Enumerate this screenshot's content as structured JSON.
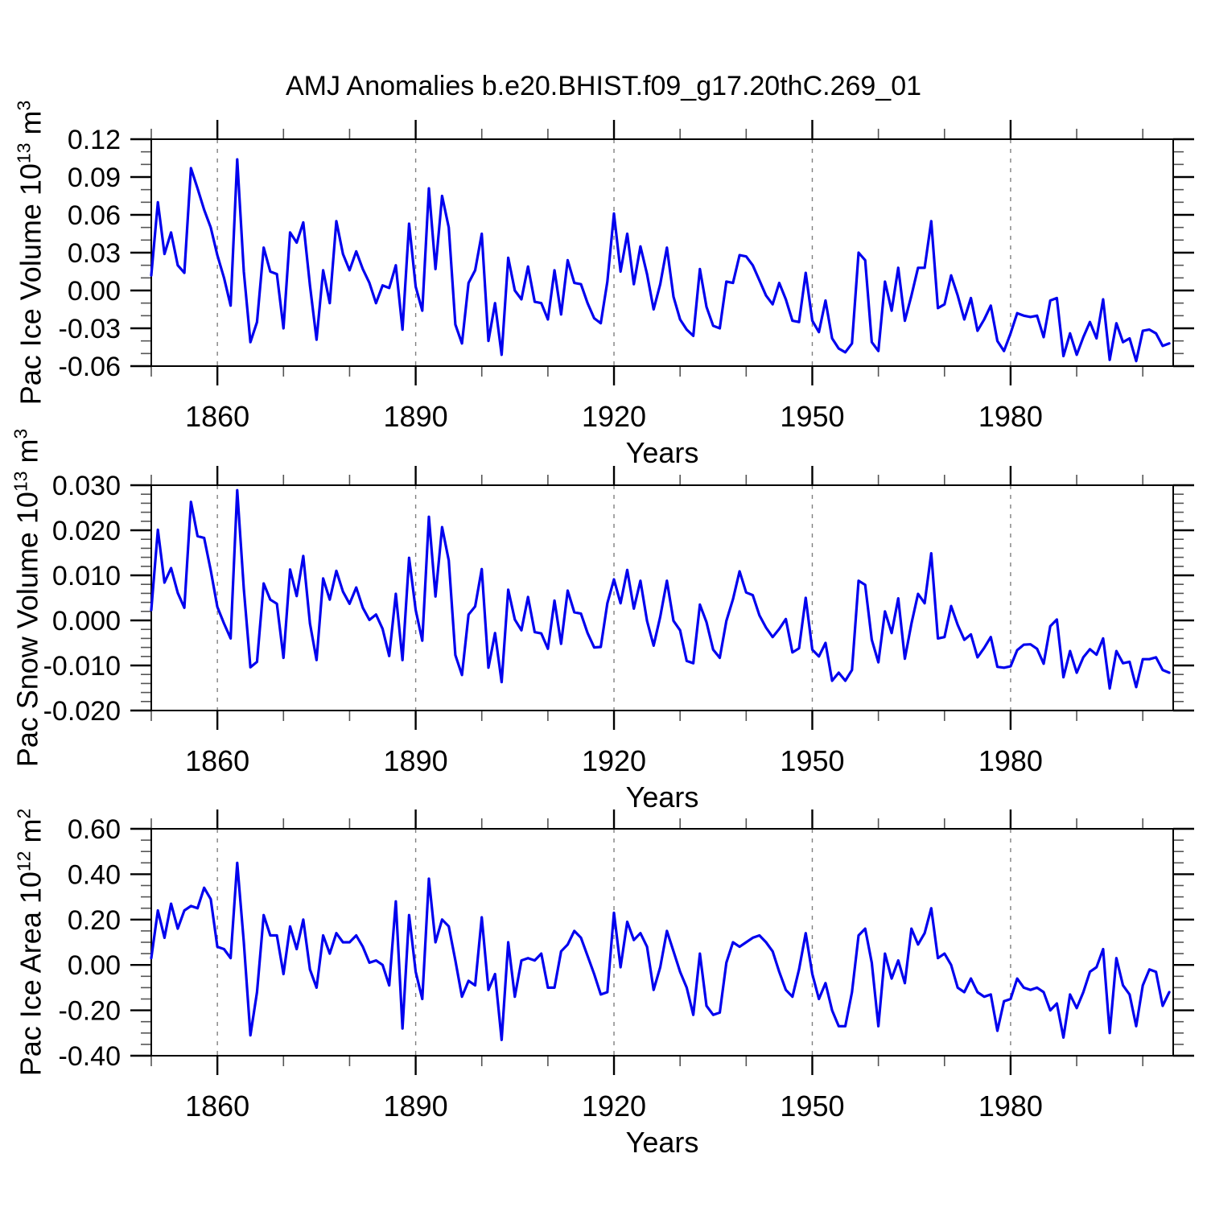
{
  "chart_data": {
    "type": "line",
    "title": "AMJ Anomalies b.e20.BHIST.f09_g17.20thC.269_01",
    "xlabel": "Years",
    "legend": "none",
    "background": "#ffffff",
    "line_color": "#0000ee",
    "grid_color": "#808080",
    "axis_color": "#000000",
    "x_axis": {
      "xlim": [
        1850,
        2004.6
      ],
      "major_ticks": [
        1860,
        1890,
        1920,
        1950,
        1980
      ],
      "major_tick_labels": [
        "1860",
        "1890",
        "1920",
        "1950",
        "1980"
      ],
      "minor_step": 10,
      "gridlines": "gray-dashed-at-major-ticks"
    },
    "years": [
      1850,
      1851,
      1852,
      1853,
      1854,
      1855,
      1856,
      1857,
      1858,
      1859,
      1860,
      1861,
      1862,
      1863,
      1864,
      1865,
      1866,
      1867,
      1868,
      1869,
      1870,
      1871,
      1872,
      1873,
      1874,
      1875,
      1876,
      1877,
      1878,
      1879,
      1880,
      1881,
      1882,
      1883,
      1884,
      1885,
      1886,
      1887,
      1888,
      1889,
      1890,
      1891,
      1892,
      1893,
      1894,
      1895,
      1896,
      1897,
      1898,
      1899,
      1900,
      1901,
      1902,
      1903,
      1904,
      1905,
      1906,
      1907,
      1908,
      1909,
      1910,
      1911,
      1912,
      1913,
      1914,
      1915,
      1916,
      1917,
      1918,
      1919,
      1920,
      1921,
      1922,
      1923,
      1924,
      1925,
      1926,
      1927,
      1928,
      1929,
      1930,
      1931,
      1932,
      1933,
      1934,
      1935,
      1936,
      1937,
      1938,
      1939,
      1940,
      1941,
      1942,
      1943,
      1944,
      1945,
      1946,
      1947,
      1948,
      1949,
      1950,
      1951,
      1952,
      1953,
      1954,
      1955,
      1956,
      1957,
      1958,
      1959,
      1960,
      1961,
      1962,
      1963,
      1964,
      1965,
      1966,
      1967,
      1968,
      1969,
      1970,
      1971,
      1972,
      1973,
      1974,
      1975,
      1976,
      1977,
      1978,
      1979,
      1980,
      1981,
      1982,
      1983,
      1984,
      1985,
      1986,
      1987,
      1988,
      1989,
      1990,
      1991,
      1992,
      1993,
      1994,
      1995,
      1996,
      1997,
      1998,
      1999,
      2000,
      2001,
      2002,
      2003,
      2004
    ],
    "panels": [
      {
        "name": "pac-ice-volume",
        "ylabel": {
          "base": "Pac Ice Volume 10",
          "exp": "13",
          "unit": " m",
          "unit_exp": "3"
        },
        "ylabel_text": "Pac Ice Volume 10^13 m^3",
        "ylim": [
          -0.06,
          0.12
        ],
        "yticks": [
          0.12,
          0.09,
          0.06,
          0.03,
          0.0,
          -0.03,
          -0.06
        ],
        "ytick_labels": [
          "0.12",
          "0.09",
          "0.06",
          "0.03",
          "0.00",
          "-0.03",
          "-0.06"
        ],
        "y_minor_step": 0.01,
        "values": [
          0.012,
          0.07,
          0.029,
          0.046,
          0.02,
          0.014,
          0.097,
          0.081,
          0.064,
          0.05,
          0.028,
          0.01,
          -0.012,
          0.104,
          0.015,
          -0.041,
          -0.025,
          0.034,
          0.015,
          0.013,
          -0.03,
          0.046,
          0.038,
          0.054,
          0.004,
          -0.039,
          0.016,
          -0.01,
          0.055,
          0.029,
          0.016,
          0.031,
          0.017,
          0.006,
          -0.01,
          0.004,
          0.002,
          0.02,
          -0.031,
          0.053,
          0.003,
          -0.016,
          0.081,
          0.017,
          0.075,
          0.05,
          -0.027,
          -0.042,
          0.006,
          0.016,
          0.045,
          -0.04,
          -0.01,
          -0.051,
          0.026,
          0.0,
          -0.007,
          0.019,
          -0.009,
          -0.01,
          -0.023,
          0.016,
          -0.019,
          0.024,
          0.006,
          0.005,
          -0.01,
          -0.022,
          -0.026,
          0.007,
          0.061,
          0.015,
          0.045,
          0.005,
          0.035,
          0.013,
          -0.015,
          0.005,
          0.034,
          -0.005,
          -0.023,
          -0.031,
          -0.036,
          0.017,
          -0.013,
          -0.028,
          -0.03,
          0.007,
          0.006,
          0.028,
          0.027,
          0.02,
          0.008,
          -0.004,
          -0.011,
          0.006,
          -0.007,
          -0.024,
          -0.025,
          0.014,
          -0.024,
          -0.033,
          -0.008,
          -0.038,
          -0.046,
          -0.049,
          -0.042,
          0.03,
          0.024,
          -0.041,
          -0.048,
          0.007,
          -0.016,
          0.018,
          -0.024,
          -0.004,
          0.018,
          0.018,
          0.055,
          -0.014,
          -0.011,
          0.012,
          -0.004,
          -0.023,
          -0.006,
          -0.032,
          -0.023,
          -0.012,
          -0.04,
          -0.048,
          -0.034,
          -0.018,
          -0.02,
          -0.021,
          -0.02,
          -0.037,
          -0.008,
          -0.006,
          -0.052,
          -0.034,
          -0.051,
          -0.037,
          -0.025,
          -0.038,
          -0.007,
          -0.055,
          -0.026,
          -0.041,
          -0.038,
          -0.056,
          -0.032,
          -0.031,
          -0.034,
          -0.044,
          -0.042
        ]
      },
      {
        "name": "pac-snow-volume",
        "ylabel": {
          "base": "Pac Snow Volume 10",
          "exp": "13",
          "unit": " m",
          "unit_exp": "3"
        },
        "ylabel_text": "Pac Snow Volume 10^13 m^3",
        "ylim": [
          -0.02,
          0.03
        ],
        "yticks": [
          0.03,
          0.02,
          0.01,
          0.0,
          -0.01,
          -0.02
        ],
        "ytick_labels": [
          "0.030",
          "0.020",
          "0.010",
          "0.000",
          "-0.010",
          "-0.020"
        ],
        "y_minor_step": 0.002,
        "values": [
          0.0023,
          0.0201,
          0.0084,
          0.0116,
          0.0061,
          0.0028,
          0.0263,
          0.0187,
          0.0183,
          0.0111,
          0.003,
          -0.0007,
          -0.004,
          0.0289,
          0.007,
          -0.0104,
          -0.0092,
          0.0082,
          0.0046,
          0.0037,
          -0.0083,
          0.0113,
          0.0054,
          0.0143,
          -0.0007,
          -0.0088,
          0.0093,
          0.0046,
          0.011,
          0.0064,
          0.0037,
          0.0073,
          0.0028,
          0.0001,
          0.0013,
          -0.0019,
          -0.0079,
          0.0059,
          -0.0088,
          0.0139,
          0.0023,
          -0.0045,
          0.023,
          0.0053,
          0.0207,
          0.0133,
          -0.0077,
          -0.0121,
          0.0013,
          0.0031,
          0.0114,
          -0.0105,
          -0.0028,
          -0.0137,
          0.0068,
          0.0002,
          -0.0022,
          0.0052,
          -0.0026,
          -0.0029,
          -0.0063,
          0.0044,
          -0.0052,
          0.0066,
          0.0018,
          0.0015,
          -0.0028,
          -0.006,
          -0.0059,
          0.0038,
          0.0091,
          0.0038,
          0.0112,
          0.0026,
          0.0088,
          -0.0001,
          -0.0056,
          0.0008,
          0.0088,
          -0.0001,
          -0.0022,
          -0.009,
          -0.0095,
          0.0035,
          -0.0004,
          -0.0065,
          -0.0083,
          -0.0001,
          0.0047,
          0.0109,
          0.0062,
          0.0056,
          0.0011,
          -0.0016,
          -0.0037,
          -0.0019,
          0.0003,
          -0.0071,
          -0.0062,
          0.005,
          -0.0065,
          -0.008,
          -0.005,
          -0.0134,
          -0.0116,
          -0.0134,
          -0.011,
          0.0088,
          0.0079,
          -0.0043,
          -0.0093,
          0.002,
          -0.0028,
          0.0049,
          -0.0085,
          -0.0007,
          0.0059,
          0.0038,
          0.0149,
          -0.004,
          -0.0037,
          0.0032,
          -0.001,
          -0.0043,
          -0.0031,
          -0.0082,
          -0.0061,
          -0.0037,
          -0.0103,
          -0.0105,
          -0.0102,
          -0.0066,
          -0.0054,
          -0.0053,
          -0.0063,
          -0.0096,
          -0.0013,
          0.0002,
          -0.0126,
          -0.0068,
          -0.0116,
          -0.0082,
          -0.0064,
          -0.0076,
          -0.004,
          -0.0151,
          -0.0068,
          -0.0095,
          -0.0092,
          -0.0148,
          -0.0086,
          -0.0086,
          -0.0082,
          -0.011,
          -0.0116
        ]
      },
      {
        "name": "pac-ice-area",
        "ylabel": {
          "base": "Pac Ice Area 10",
          "exp": "12",
          "unit": " m",
          "unit_exp": "2"
        },
        "ylabel_text": "Pac Ice Area 10^12 m^2",
        "ylim": [
          -0.4,
          0.6
        ],
        "yticks": [
          0.6,
          0.4,
          0.2,
          0.0,
          -0.2,
          -0.4
        ],
        "ytick_labels": [
          "0.60",
          "0.40",
          "0.20",
          "0.00",
          "-0.20",
          "-0.40"
        ],
        "y_minor_step": 0.05,
        "values": [
          0.03,
          0.24,
          0.12,
          0.27,
          0.16,
          0.24,
          0.26,
          0.25,
          0.34,
          0.29,
          0.08,
          0.07,
          0.03,
          0.45,
          0.1,
          -0.31,
          -0.12,
          0.22,
          0.13,
          0.13,
          -0.04,
          0.17,
          0.07,
          0.2,
          -0.02,
          -0.1,
          0.13,
          0.05,
          0.14,
          0.1,
          0.1,
          0.13,
          0.08,
          0.01,
          0.02,
          0.0,
          -0.09,
          0.28,
          -0.28,
          0.22,
          -0.03,
          -0.15,
          0.38,
          0.1,
          0.2,
          0.17,
          0.02,
          -0.14,
          -0.07,
          -0.09,
          0.21,
          -0.11,
          -0.04,
          -0.33,
          0.1,
          -0.14,
          0.02,
          0.03,
          0.02,
          0.05,
          -0.1,
          -0.1,
          0.06,
          0.09,
          0.15,
          0.12,
          0.04,
          -0.04,
          -0.13,
          -0.12,
          0.23,
          -0.01,
          0.19,
          0.11,
          0.14,
          0.08,
          -0.11,
          -0.01,
          0.15,
          0.06,
          -0.03,
          -0.1,
          -0.22,
          0.05,
          -0.18,
          -0.22,
          -0.21,
          0.01,
          0.1,
          0.08,
          0.1,
          0.12,
          0.13,
          0.1,
          0.06,
          -0.03,
          -0.11,
          -0.14,
          -0.02,
          0.14,
          -0.04,
          -0.15,
          -0.08,
          -0.2,
          -0.27,
          -0.27,
          -0.12,
          0.13,
          0.16,
          0.01,
          -0.27,
          0.05,
          -0.06,
          0.02,
          -0.08,
          0.16,
          0.09,
          0.14,
          0.25,
          0.03,
          0.05,
          0.0,
          -0.1,
          -0.12,
          -0.06,
          -0.12,
          -0.14,
          -0.13,
          -0.29,
          -0.16,
          -0.15,
          -0.06,
          -0.1,
          -0.11,
          -0.1,
          -0.12,
          -0.2,
          -0.17,
          -0.32,
          -0.13,
          -0.19,
          -0.12,
          -0.03,
          -0.01,
          0.07,
          -0.3,
          0.03,
          -0.09,
          -0.13,
          -0.27,
          -0.09,
          -0.02,
          -0.03,
          -0.18,
          -0.12
        ]
      }
    ]
  }
}
